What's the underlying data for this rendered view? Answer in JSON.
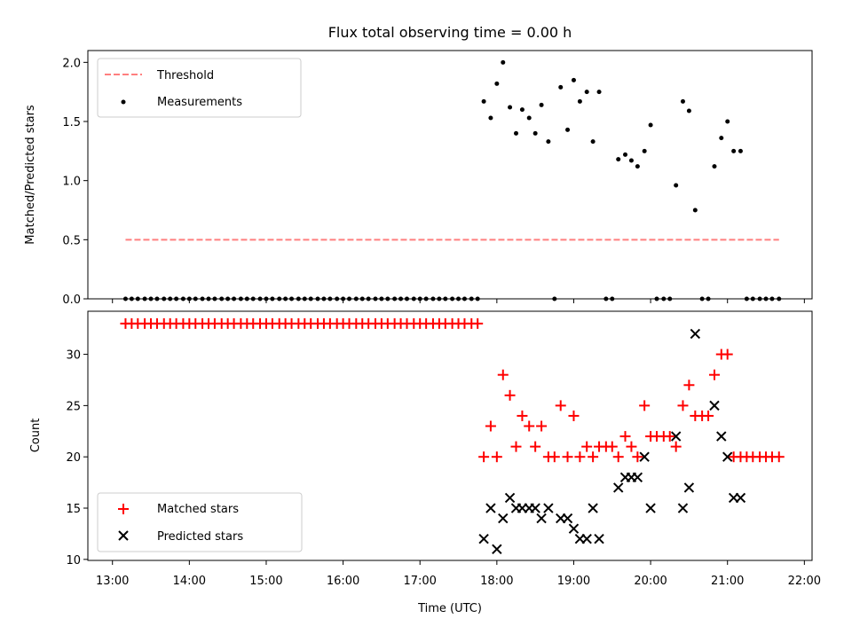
{
  "chart_data": {
    "type": "scatter",
    "title": "Flux total observing time = 0.00 h",
    "x_tick_labels": [
      "13:00",
      "14:00",
      "15:00",
      "16:00",
      "17:00",
      "18:00",
      "19:00",
      "20:00",
      "21:00",
      "22:00"
    ],
    "xlabel": "Time (UTC)",
    "xlim_hours": [
      12.68,
      22.1
    ],
    "top_panel": {
      "ylabel": "Matched/Predicted stars",
      "ylim": [
        0,
        2.1
      ],
      "yticks": [
        0,
        0.5,
        1.0,
        1.5,
        2.0
      ],
      "ytick_labels": [
        "0.0",
        "0.5",
        "1.0",
        "1.5",
        "2.0"
      ],
      "threshold": {
        "label": "Threshold",
        "value": 0.5,
        "x_start": 13.17,
        "x_end": 21.67,
        "color": "#ff7f7f"
      },
      "measurements_label": "Measurements",
      "zero_series_x": [
        13.17,
        13.25,
        13.33,
        13.42,
        13.5,
        13.58,
        13.67,
        13.75,
        13.83,
        13.92,
        14.0,
        14.08,
        14.17,
        14.25,
        14.33,
        14.42,
        14.5,
        14.58,
        14.67,
        14.75,
        14.83,
        14.92,
        15.0,
        15.08,
        15.17,
        15.25,
        15.33,
        15.42,
        15.5,
        15.58,
        15.67,
        15.75,
        15.83,
        15.92,
        16.0,
        16.08,
        16.17,
        16.25,
        16.33,
        16.42,
        16.5,
        16.58,
        16.67,
        16.75,
        16.83,
        16.92,
        17.0,
        17.08,
        17.17,
        17.25,
        17.33,
        17.42,
        17.5,
        17.58,
        17.67,
        17.75,
        18.75,
        19.42,
        19.5,
        20.08,
        20.17,
        20.25,
        20.67,
        20.75,
        21.25,
        21.33,
        21.42,
        21.5,
        21.58,
        21.67
      ],
      "measurements": [
        [
          17.83,
          1.67
        ],
        [
          17.92,
          1.53
        ],
        [
          18.0,
          1.82
        ],
        [
          18.08,
          2.0
        ],
        [
          18.17,
          1.62
        ],
        [
          18.25,
          1.4
        ],
        [
          18.33,
          1.6
        ],
        [
          18.42,
          1.53
        ],
        [
          18.5,
          1.4
        ],
        [
          18.58,
          1.64
        ],
        [
          18.67,
          1.33
        ],
        [
          18.83,
          1.79
        ],
        [
          18.92,
          1.43
        ],
        [
          19.0,
          1.85
        ],
        [
          19.08,
          1.67
        ],
        [
          19.17,
          1.75
        ],
        [
          19.25,
          1.33
        ],
        [
          19.33,
          1.75
        ],
        [
          19.58,
          1.18
        ],
        [
          19.67,
          1.22
        ],
        [
          19.75,
          1.17
        ],
        [
          19.83,
          1.12
        ],
        [
          19.92,
          1.25
        ],
        [
          20.0,
          1.47
        ],
        [
          20.33,
          0.96
        ],
        [
          20.42,
          1.67
        ],
        [
          20.5,
          1.59
        ],
        [
          20.58,
          0.75
        ],
        [
          20.83,
          1.12
        ],
        [
          20.92,
          1.36
        ],
        [
          21.0,
          1.5
        ],
        [
          21.08,
          1.25
        ],
        [
          21.17,
          1.25
        ]
      ]
    },
    "bottom_panel": {
      "ylabel": "Count",
      "ylim": [
        9.9,
        34.2
      ],
      "yticks": [
        10,
        15,
        20,
        25,
        30
      ],
      "ytick_labels": [
        "10",
        "15",
        "20",
        "25",
        "30"
      ],
      "series": [
        {
          "name": "Matched stars",
          "marker": "+",
          "color": "#ff0000",
          "points": [
            [
              13.17,
              33
            ],
            [
              13.25,
              33
            ],
            [
              13.33,
              33
            ],
            [
              13.42,
              33
            ],
            [
              13.5,
              33
            ],
            [
              13.58,
              33
            ],
            [
              13.67,
              33
            ],
            [
              13.75,
              33
            ],
            [
              13.83,
              33
            ],
            [
              13.92,
              33
            ],
            [
              14.0,
              33
            ],
            [
              14.08,
              33
            ],
            [
              14.17,
              33
            ],
            [
              14.25,
              33
            ],
            [
              14.33,
              33
            ],
            [
              14.42,
              33
            ],
            [
              14.5,
              33
            ],
            [
              14.58,
              33
            ],
            [
              14.67,
              33
            ],
            [
              14.75,
              33
            ],
            [
              14.83,
              33
            ],
            [
              14.92,
              33
            ],
            [
              15.0,
              33
            ],
            [
              15.08,
              33
            ],
            [
              15.17,
              33
            ],
            [
              15.25,
              33
            ],
            [
              15.33,
              33
            ],
            [
              15.42,
              33
            ],
            [
              15.5,
              33
            ],
            [
              15.58,
              33
            ],
            [
              15.67,
              33
            ],
            [
              15.75,
              33
            ],
            [
              15.83,
              33
            ],
            [
              15.92,
              33
            ],
            [
              16.0,
              33
            ],
            [
              16.08,
              33
            ],
            [
              16.17,
              33
            ],
            [
              16.25,
              33
            ],
            [
              16.33,
              33
            ],
            [
              16.42,
              33
            ],
            [
              16.5,
              33
            ],
            [
              16.58,
              33
            ],
            [
              16.67,
              33
            ],
            [
              16.75,
              33
            ],
            [
              16.83,
              33
            ],
            [
              16.92,
              33
            ],
            [
              17.0,
              33
            ],
            [
              17.08,
              33
            ],
            [
              17.17,
              33
            ],
            [
              17.25,
              33
            ],
            [
              17.33,
              33
            ],
            [
              17.42,
              33
            ],
            [
              17.5,
              33
            ],
            [
              17.58,
              33
            ],
            [
              17.67,
              33
            ],
            [
              17.75,
              33
            ],
            [
              17.83,
              20
            ],
            [
              17.92,
              23
            ],
            [
              18.0,
              20
            ],
            [
              18.08,
              28
            ],
            [
              18.17,
              26
            ],
            [
              18.25,
              21
            ],
            [
              18.33,
              24
            ],
            [
              18.42,
              23
            ],
            [
              18.5,
              21
            ],
            [
              18.58,
              23
            ],
            [
              18.67,
              20
            ],
            [
              18.75,
              20
            ],
            [
              18.83,
              25
            ],
            [
              18.92,
              20
            ],
            [
              19.0,
              24
            ],
            [
              19.08,
              20
            ],
            [
              19.17,
              21
            ],
            [
              19.25,
              20
            ],
            [
              19.33,
              21
            ],
            [
              19.42,
              21
            ],
            [
              19.5,
              21
            ],
            [
              19.58,
              20
            ],
            [
              19.67,
              22
            ],
            [
              19.75,
              21
            ],
            [
              19.83,
              20
            ],
            [
              19.92,
              25
            ],
            [
              20.0,
              22
            ],
            [
              20.08,
              22
            ],
            [
              20.17,
              22
            ],
            [
              20.25,
              22
            ],
            [
              20.33,
              21
            ],
            [
              20.42,
              25
            ],
            [
              20.5,
              27
            ],
            [
              20.58,
              24
            ],
            [
              20.67,
              24
            ],
            [
              20.75,
              24
            ],
            [
              20.83,
              28
            ],
            [
              20.92,
              30
            ],
            [
              21.0,
              30
            ],
            [
              21.08,
              20
            ],
            [
              21.17,
              20
            ],
            [
              21.25,
              20
            ],
            [
              21.33,
              20
            ],
            [
              21.42,
              20
            ],
            [
              21.5,
              20
            ],
            [
              21.58,
              20
            ],
            [
              21.67,
              20
            ]
          ]
        },
        {
          "name": "Predicted stars",
          "marker": "x",
          "color": "#000000",
          "points": [
            [
              17.83,
              12
            ],
            [
              17.92,
              15
            ],
            [
              18.0,
              11
            ],
            [
              18.08,
              14
            ],
            [
              18.17,
              16
            ],
            [
              18.25,
              15
            ],
            [
              18.33,
              15
            ],
            [
              18.42,
              15
            ],
            [
              18.5,
              15
            ],
            [
              18.58,
              14
            ],
            [
              18.67,
              15
            ],
            [
              18.83,
              14
            ],
            [
              18.92,
              14
            ],
            [
              19.0,
              13
            ],
            [
              19.08,
              12
            ],
            [
              19.17,
              12
            ],
            [
              19.25,
              15
            ],
            [
              19.33,
              12
            ],
            [
              19.58,
              17
            ],
            [
              19.67,
              18
            ],
            [
              19.75,
              18
            ],
            [
              19.83,
              18
            ],
            [
              19.92,
              20
            ],
            [
              20.0,
              15
            ],
            [
              20.33,
              22
            ],
            [
              20.42,
              15
            ],
            [
              20.5,
              17
            ],
            [
              20.58,
              32
            ],
            [
              20.83,
              25
            ],
            [
              20.92,
              22
            ],
            [
              21.0,
              20
            ],
            [
              21.08,
              16
            ],
            [
              21.17,
              16
            ]
          ]
        }
      ]
    }
  }
}
